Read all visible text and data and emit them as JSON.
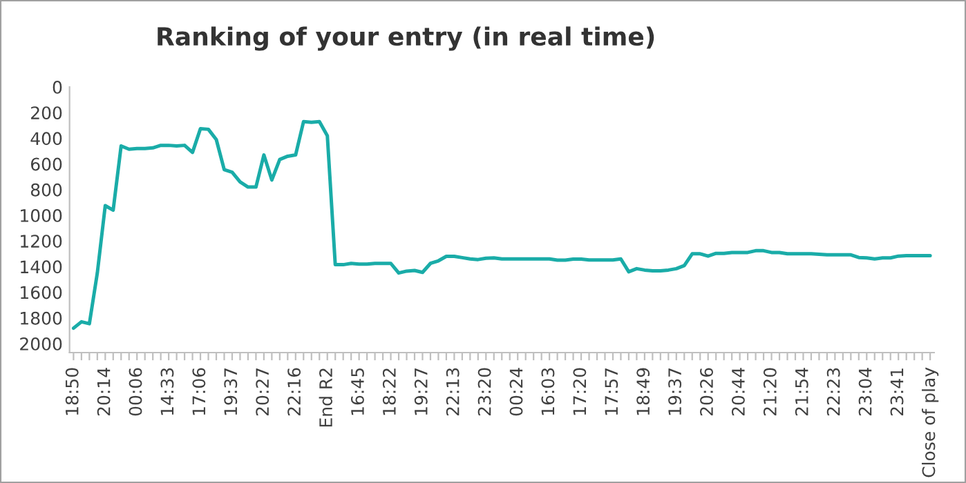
{
  "chart_data": {
    "type": "line",
    "title": "Ranking of your entry (in real time)",
    "categories": [
      "18:50",
      null,
      null,
      null,
      "20:14",
      null,
      null,
      null,
      "00:06",
      null,
      null,
      null,
      "14:33",
      null,
      null,
      null,
      "17:06",
      null,
      null,
      null,
      "19:37",
      null,
      null,
      null,
      "20:27",
      null,
      null,
      null,
      "22:16",
      null,
      null,
      null,
      "End R2",
      null,
      null,
      null,
      "16:45",
      null,
      null,
      null,
      "18:22",
      null,
      null,
      null,
      "19:27",
      null,
      null,
      null,
      "22:13",
      null,
      null,
      null,
      "23:20",
      null,
      null,
      null,
      "00:24",
      null,
      null,
      null,
      "16:03",
      null,
      null,
      null,
      "17:20",
      null,
      null,
      null,
      "17:57",
      null,
      null,
      null,
      "18:49",
      null,
      null,
      null,
      "19:37",
      null,
      null,
      null,
      "20:26",
      null,
      null,
      null,
      "20:44",
      null,
      null,
      null,
      "21:20",
      null,
      null,
      null,
      "21:54",
      null,
      null,
      null,
      "22:23",
      null,
      null,
      null,
      "23:04",
      null,
      null,
      null,
      "23:41",
      null,
      null,
      null,
      "Close of play"
    ],
    "series": [
      {
        "color": "#1aaca8",
        "values": [
          1880,
          1830,
          1845,
          1450,
          925,
          960,
          460,
          485,
          480,
          480,
          475,
          455,
          455,
          460,
          455,
          510,
          325,
          330,
          410,
          645,
          665,
          740,
          780,
          780,
          530,
          725,
          565,
          540,
          530,
          270,
          275,
          270,
          380,
          1385,
          1385,
          1375,
          1380,
          1380,
          1375,
          1375,
          1375,
          1450,
          1435,
          1430,
          1445,
          1375,
          1355,
          1320,
          1320,
          1330,
          1340,
          1345,
          1335,
          1332,
          1340,
          1340,
          1340,
          1340,
          1340,
          1340,
          1340,
          1350,
          1350,
          1342,
          1342,
          1348,
          1348,
          1348,
          1348,
          1340,
          1440,
          1416,
          1427,
          1433,
          1433,
          1427,
          1416,
          1392,
          1300,
          1300,
          1318,
          1297,
          1297,
          1290,
          1290,
          1290,
          1276,
          1276,
          1290,
          1290,
          1300,
          1300,
          1300,
          1300,
          1304,
          1308,
          1308,
          1308,
          1308,
          1329,
          1332,
          1340,
          1332,
          1332,
          1318,
          1315,
          1315,
          1315,
          1315
        ]
      }
    ],
    "ylim": [
      2070,
      0
    ],
    "yticks": [
      0,
      200,
      400,
      600,
      800,
      1000,
      1200,
      1400,
      1600,
      1800,
      2000
    ],
    "grid": false,
    "legend": false,
    "marker": "none",
    "line_style": "solid"
  }
}
